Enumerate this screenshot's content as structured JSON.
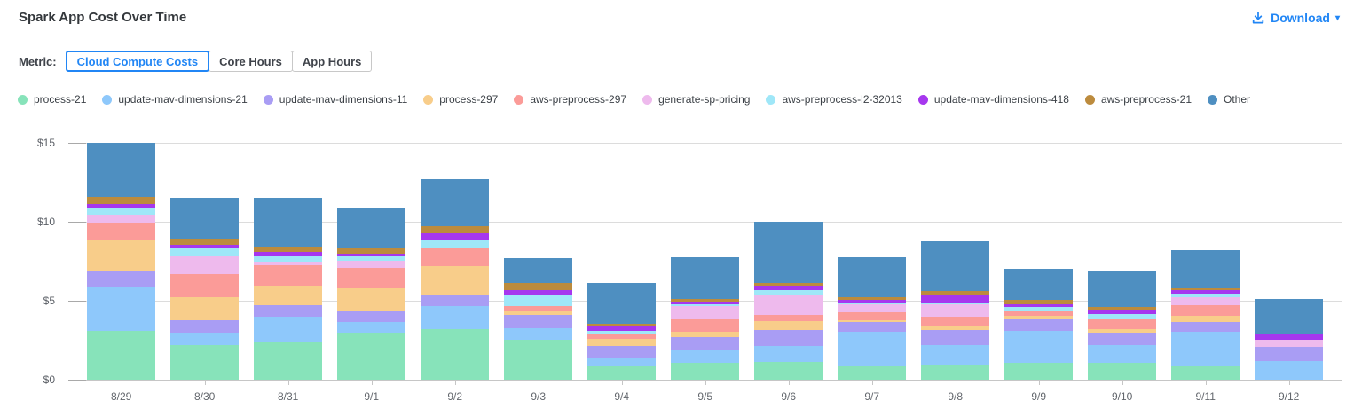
{
  "header": {
    "title": "Spark App Cost Over Time",
    "download_label": "Download",
    "download_caret": "▾"
  },
  "metric": {
    "label": "Metric:",
    "options": [
      {
        "label": "Cloud Compute Costs",
        "active": true
      },
      {
        "label": "Core Hours",
        "active": false
      },
      {
        "label": "App Hours",
        "active": false
      }
    ]
  },
  "colors": {
    "accent_blue": "#2186f5",
    "title_text": "#33373b",
    "axis_text": "#62666c",
    "gridline": "#dcdcdc"
  },
  "chart_data": {
    "type": "bar",
    "stacked": true,
    "title": "Spark App Cost Over Time",
    "xlabel": "",
    "ylabel": "",
    "ylim": [
      0,
      15
    ],
    "yticks": [
      0,
      5,
      10,
      15
    ],
    "ytick_labels": [
      "$0",
      "$5",
      "$10",
      "$15"
    ],
    "grid": true,
    "legend_position": "top",
    "categories": [
      "8/29",
      "8/30",
      "8/31",
      "9/1",
      "9/2",
      "9/3",
      "9/4",
      "9/5",
      "9/6",
      "9/7",
      "9/8",
      "9/9",
      "9/10",
      "9/11",
      "9/12"
    ],
    "series": [
      {
        "name": "process-21",
        "color": "#87e3ba",
        "values": [
          3.1,
          2.2,
          2.4,
          2.95,
          3.2,
          2.5,
          0.85,
          1.05,
          1.1,
          0.85,
          0.95,
          1.05,
          1.05,
          0.9,
          0.0
        ]
      },
      {
        "name": "update-mav-dimensions-21",
        "color": "#8ec8fb",
        "values": [
          2.75,
          0.8,
          1.6,
          0.7,
          1.45,
          0.75,
          0.55,
          0.85,
          1.05,
          2.2,
          1.25,
          2.05,
          1.15,
          2.15,
          1.2
        ]
      },
      {
        "name": "update-mav-dimensions-11",
        "color": "#a99df4",
        "values": [
          1.0,
          0.75,
          0.7,
          0.75,
          0.75,
          0.85,
          0.75,
          0.8,
          1.0,
          0.6,
          0.95,
          0.75,
          0.75,
          0.6,
          0.9
        ]
      },
      {
        "name": "process-297",
        "color": "#f8cd8a",
        "values": [
          2.05,
          1.45,
          1.25,
          1.4,
          1.8,
          0.3,
          0.45,
          0.35,
          0.55,
          0.1,
          0.25,
          0.2,
          0.25,
          0.4,
          0.0
        ]
      },
      {
        "name": "aws-preprocess-297",
        "color": "#fb9b98",
        "values": [
          1.05,
          1.5,
          1.3,
          1.3,
          1.15,
          0.25,
          0.3,
          0.85,
          0.4,
          0.5,
          0.6,
          0.35,
          0.65,
          0.65,
          0.0
        ]
      },
      {
        "name": "generate-sp-pricing",
        "color": "#eebaed",
        "values": [
          0.5,
          1.1,
          0.2,
          0.4,
          0.0,
          0.0,
          0.0,
          0.75,
          1.3,
          0.55,
          0.75,
          0.0,
          0.0,
          0.55,
          0.45
        ]
      },
      {
        "name": "aws-preprocess-l2-32013",
        "color": "#9fe7f8",
        "values": [
          0.4,
          0.55,
          0.35,
          0.35,
          0.45,
          0.75,
          0.2,
          0.15,
          0.25,
          0.1,
          0.1,
          0.2,
          0.3,
          0.2,
          0.0
        ]
      },
      {
        "name": "update-mav-dimensions-418",
        "color": "#a637ee",
        "values": [
          0.25,
          0.2,
          0.3,
          0.15,
          0.45,
          0.3,
          0.3,
          0.15,
          0.3,
          0.15,
          0.55,
          0.2,
          0.3,
          0.2,
          0.3
        ]
      },
      {
        "name": "aws-preprocess-21",
        "color": "#bc8b3d",
        "values": [
          0.45,
          0.4,
          0.3,
          0.35,
          0.45,
          0.45,
          0.15,
          0.15,
          0.2,
          0.2,
          0.2,
          0.25,
          0.15,
          0.15,
          0.0
        ]
      },
      {
        "name": "Other",
        "color": "#4e8fc1",
        "values": [
          3.45,
          2.55,
          3.1,
          2.55,
          3.0,
          1.55,
          2.6,
          2.65,
          3.85,
          2.5,
          3.15,
          2.0,
          2.3,
          2.4,
          2.25
        ]
      }
    ]
  }
}
